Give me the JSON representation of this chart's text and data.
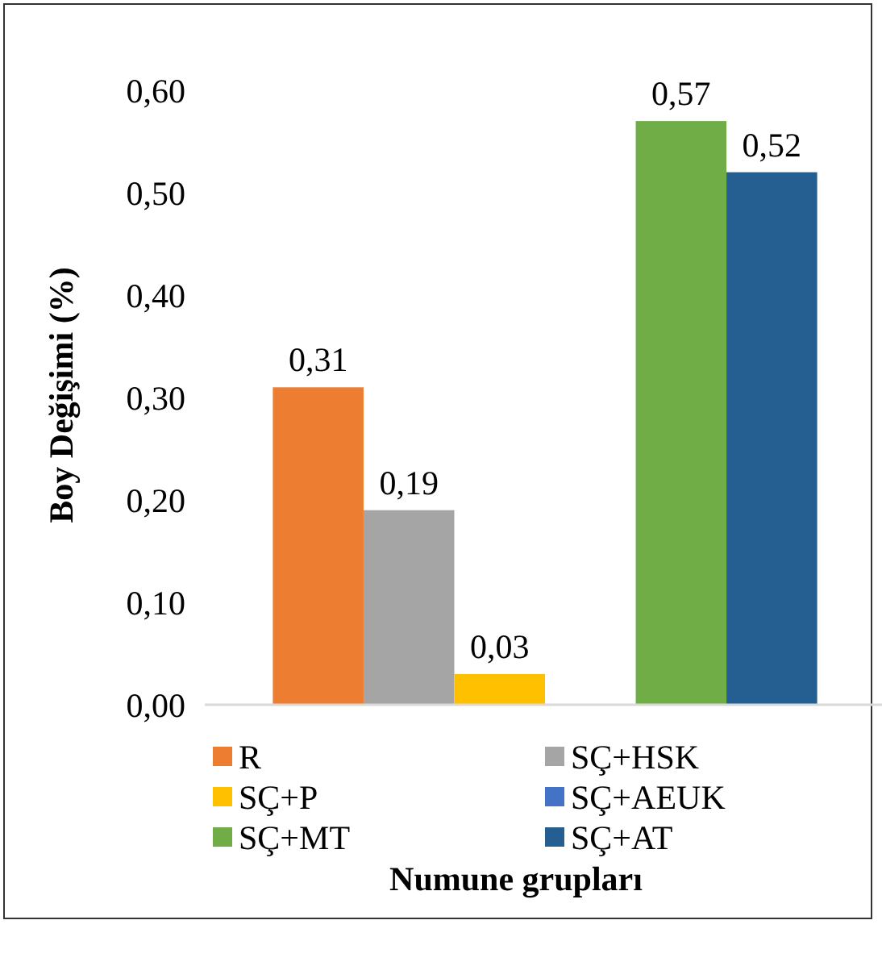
{
  "chart_data": {
    "type": "bar",
    "xlabel": "Numune grupları",
    "ylabel": "Boy Değişimi (%)",
    "categories": [
      null
    ],
    "series": [
      {
        "name": "R",
        "color": "#ed7d31",
        "values": [
          0.31
        ],
        "value_labels": [
          "0,31"
        ]
      },
      {
        "name": "SÇ+HSK",
        "color": "#a5a5a5",
        "values": [
          0.19
        ],
        "value_labels": [
          "0,19"
        ]
      },
      {
        "name": "SÇ+P",
        "color": "#ffc000",
        "values": [
          0.03
        ],
        "value_labels": [
          "0,03"
        ]
      },
      {
        "name": "SÇ+AEUK",
        "color": "#4472c4",
        "values": [
          null
        ],
        "value_labels": [
          null
        ]
      },
      {
        "name": "SÇ+MT",
        "color": "#70ad47",
        "values": [
          0.57
        ],
        "value_labels": [
          "0,57"
        ]
      },
      {
        "name": "SÇ+AT",
        "color": "#255e91",
        "values": [
          0.52
        ],
        "value_labels": [
          "0,52"
        ]
      }
    ],
    "ylim": [
      0,
      0.6
    ],
    "yticks": [
      {
        "value": 0,
        "label": "0,00"
      },
      {
        "value": 0.1,
        "label": "0,10"
      },
      {
        "value": 0.2,
        "label": "0,20"
      },
      {
        "value": 0.3,
        "label": "0,30"
      },
      {
        "value": 0.4,
        "label": "0,40"
      },
      {
        "value": 0.5,
        "label": "0,50"
      },
      {
        "value": 0.6,
        "label": "0,60"
      }
    ],
    "legend": "bottom",
    "grid": false
  }
}
